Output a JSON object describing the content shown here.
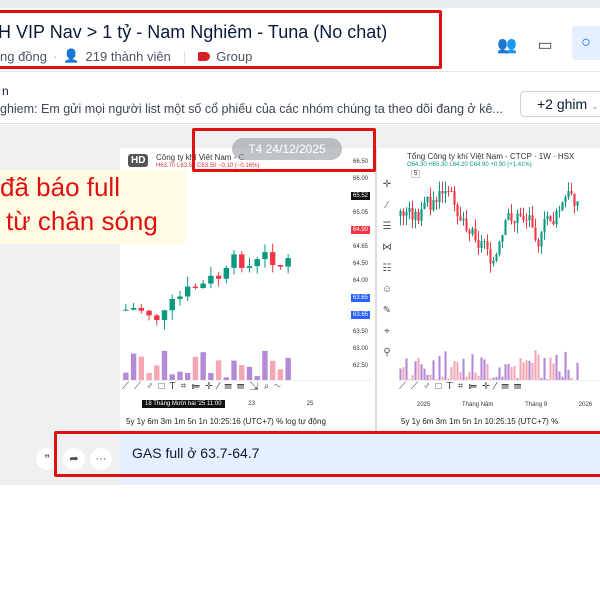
{
  "header": {
    "title": "H VIP Nav > 1 tỷ - Nam Nghiêm - Tuna (No chat)",
    "community": "ng đồng",
    "members": "219 thành viên",
    "label": "Group",
    "label_color": "#d71f26",
    "icons": [
      "add-member-icon",
      "video-call-icon",
      "search-icon"
    ]
  },
  "pinned": {
    "name": "n",
    "text": "ghiem: Em gửi mọi người list một số cổ phiếu của các nhóm chúng ta theo dõi đang ở kê...",
    "more": "+2 ghim"
  },
  "message": {
    "date": "T4 24/12/2025",
    "annotation": [
      "đã báo full",
      "từ chân sóng"
    ],
    "chart_left": {
      "badge": "HD",
      "title": "Công ty khí Việt Nam - C",
      "ohlc": "H63.70 L63.50 C63.50 −0.10 (−0.16%)",
      "prices": [
        "66.50",
        "66.00",
        "65.52",
        "65.05",
        "64.90",
        "64.65",
        "64.50",
        "64.00",
        "63.65",
        "63.65",
        "63.50",
        "63.00",
        "62.50"
      ],
      "time_axis": [
        "18 Tháng Mười hai '25  11:00",
        "23",
        "25"
      ],
      "bottom": "5y  1y  6m  3m  1m  5n  1n     10:25:16 (UTC+7)   %  log  tự động"
    },
    "chart_right": {
      "title": "Tổng Công ty khí Việt Nam - CTCP · 1W · HSX",
      "ohlc": "O64.30 H65.30 L64.20 C64.90 +0.90 (+1.41%)",
      "indicator": "5",
      "time_axis": [
        "2025",
        "Tháng Năm",
        "Tháng 9",
        "2026"
      ],
      "bottom": "5y  1y  6m  3m  1m  5n  1n     10:25:15 (UTC+7)   %"
    },
    "text": "GAS full ở 63.7-64.7"
  },
  "colors": {
    "up": "#089981",
    "down": "#f23645",
    "highlight": "#e01010",
    "bubble": "#e5efff"
  }
}
